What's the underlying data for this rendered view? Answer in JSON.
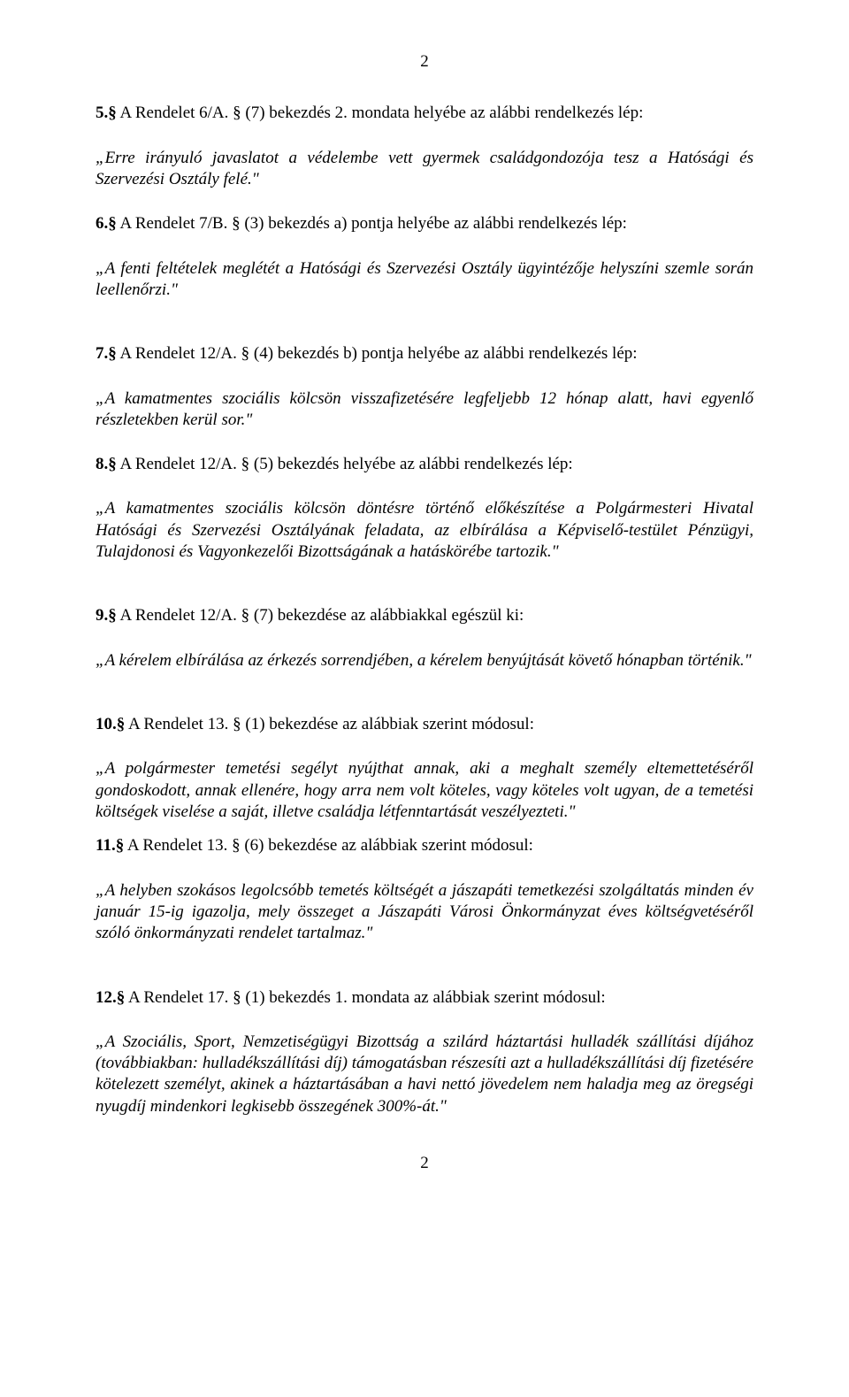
{
  "pageNumberTop": "2",
  "pageNumberBottom": "2",
  "p5_lead_bold": "5.§",
  "p5_lead_rest": " A Rendelet 6/A. § (7) bekezdés 2. mondata helyébe az alábbi rendelkezés lép:",
  "p5_quote": "„Erre irányuló javaslatot a védelembe vett gyermek családgondozója tesz a Hatósági és Szervezési Osztály felé.\"",
  "p6_lead_bold": "6.§",
  "p6_lead_rest": " A Rendelet 7/B. § (3) bekezdés a) pontja helyébe az alábbi rendelkezés lép:",
  "p6_quote": "„A fenti feltételek meglétét a Hatósági és Szervezési Osztály ügyintézője helyszíni szemle során leellenőrzi.\"",
  "p7_lead_bold": "7.§",
  "p7_lead_rest": " A Rendelet 12/A. § (4) bekezdés b) pontja helyébe az alábbi rendelkezés lép:",
  "p7_quote": "„A kamatmentes szociális kölcsön visszafizetésére legfeljebb 12 hónap alatt, havi egyenlő részletekben kerül sor.\"",
  "p8_lead_bold": "8.§",
  "p8_lead_rest": " A Rendelet 12/A. § (5) bekezdés helyébe az alábbi rendelkezés lép:",
  "p8_quote": "„A kamatmentes szociális kölcsön döntésre történő előkészítése a Polgármesteri Hivatal Hatósági és Szervezési Osztályának feladata, az elbírálása a Képviselő-testület Pénzügyi, Tulajdonosi és Vagyonkezelői Bizottságának a hatáskörébe tartozik.\"",
  "p9_lead_bold": "9.§",
  "p9_lead_rest": " A Rendelet 12/A. § (7) bekezdése az alábbiakkal egészül ki:",
  "p9_quote": "„A kérelem elbírálása az érkezés sorrendjében, a kérelem benyújtását követő hónapban történik.\"",
  "p10_lead_bold": "10.§",
  "p10_lead_rest": " A Rendelet 13. § (1) bekezdése az alábbiak szerint módosul:",
  "p10_quote": "„A polgármester temetési segélyt nyújthat annak, aki a meghalt személy eltemettetéséről gondoskodott, annak ellenére, hogy arra nem volt köteles, vagy köteles volt ugyan, de a temetési költségek viselése a saját, illetve családja létfenntartását veszélyezteti.\"",
  "p11_lead_bold": "11.§",
  "p11_lead_rest": " A Rendelet 13. § (6) bekezdése az alábbiak szerint módosul:",
  "p11_quote": "„A helyben szokásos legolcsóbb temetés költségét a jászapáti temetkezési szolgáltatás minden év január 15-ig igazolja, mely összeget a Jászapáti Városi Önkormányzat éves költségvetéséről szóló önkormányzati rendelet tartalmaz.\"",
  "p12_lead_bold": "12.§",
  "p12_lead_rest": " A Rendelet 17. § (1) bekezdés 1. mondata az alábbiak szerint módosul:",
  "p12_quote": "„A Szociális, Sport, Nemzetiségügyi Bizottság a szilárd háztartási hulladék szállítási díjához (továbbiakban: hulladékszállítási díj) támogatásban részesíti azt a hulladékszállítási díj fizetésére kötelezett személyt, akinek a háztartásában a havi nettó jövedelem nem haladja meg az öregségi nyugdíj mindenkori legkisebb összegének 300%-át.\""
}
